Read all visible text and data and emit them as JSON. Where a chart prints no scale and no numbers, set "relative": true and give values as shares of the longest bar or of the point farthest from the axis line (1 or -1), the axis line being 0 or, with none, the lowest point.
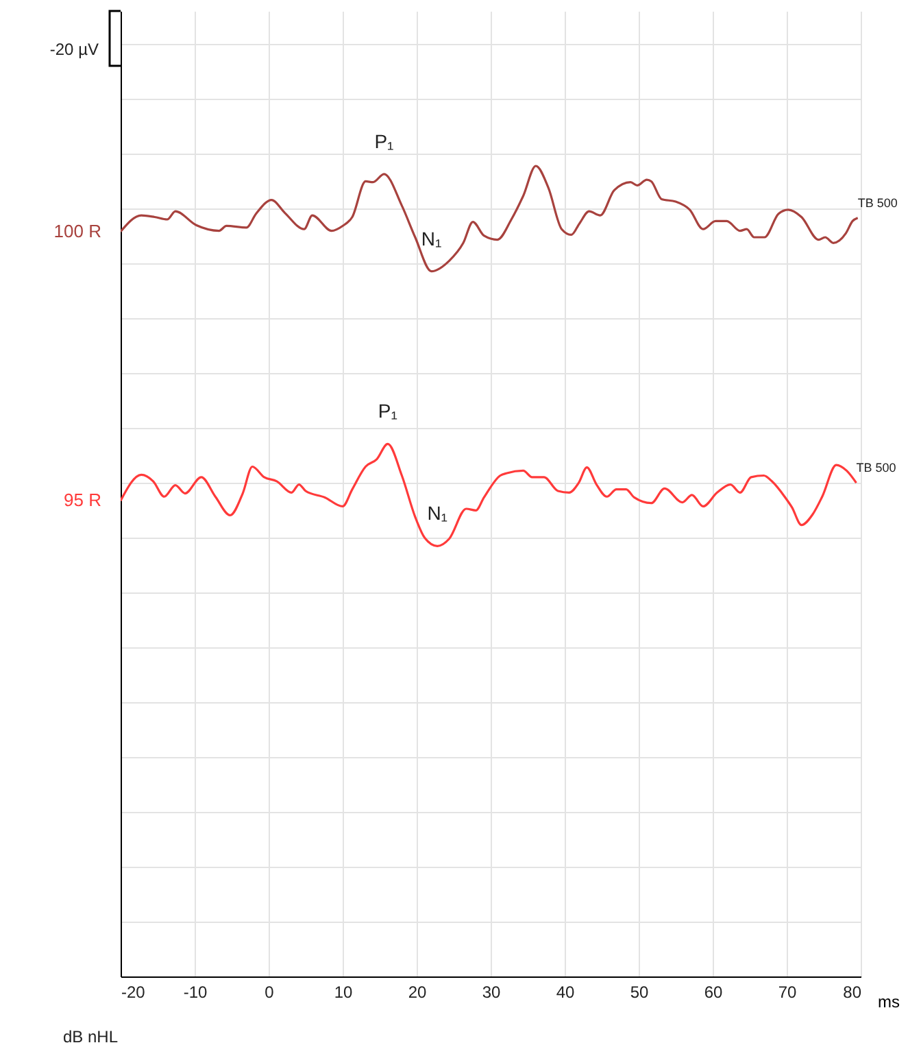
{
  "chart_data": {
    "type": "line",
    "relative": true,
    "xlabel": "ms",
    "xlim": [
      -20,
      80
    ],
    "xticks": [
      -20,
      -10,
      0,
      10,
      20,
      30,
      40,
      50,
      60,
      70,
      80
    ],
    "grid": true,
    "series": [
      {
        "name": "100 R",
        "color": "#a8423e",
        "x": [
          -20.0,
          -17.2,
          -15.4,
          -13.7,
          -12.6,
          -9.8,
          -6.7,
          -5.7,
          -3.0,
          -1.7,
          0.4,
          2.2,
          4.8,
          5.9,
          8.5,
          10.0,
          11.3,
          13.1,
          14.1,
          15.6,
          18.0,
          19.8,
          22.0,
          24.4,
          26.3,
          27.6,
          29.1,
          30.9,
          32.8,
          34.4,
          36.1,
          37.8,
          39.6,
          40.9,
          42.0,
          43.3,
          44.8,
          46.7,
          48.9,
          49.8,
          51.1,
          51.7,
          53.1,
          55.0,
          56.9,
          58.7,
          60.4,
          61.9,
          63.7,
          64.6,
          65.6,
          67.0,
          68.9,
          70.2,
          72.0,
          74.3,
          75.2,
          76.3,
          78.0,
          78.9,
          79.6
        ],
        "values": [
          0.919,
          0.939,
          0.937,
          0.934,
          0.944,
          0.927,
          0.92,
          0.926,
          0.924,
          0.941,
          0.958,
          0.942,
          0.922,
          0.939,
          0.92,
          0.926,
          0.937,
          0.981,
          0.98,
          0.99,
          0.951,
          0.912,
          0.87,
          0.883,
          0.905,
          0.931,
          0.914,
          0.909,
          0.934,
          0.963,
          1.0,
          0.973,
          0.922,
          0.915,
          0.929,
          0.944,
          0.939,
          0.97,
          0.98,
          0.976,
          0.983,
          0.981,
          0.959,
          0.956,
          0.946,
          0.922,
          0.932,
          0.932,
          0.92,
          0.922,
          0.912,
          0.912,
          0.941,
          0.946,
          0.937,
          0.909,
          0.912,
          0.905,
          0.917,
          0.932,
          0.936
        ]
      },
      {
        "name": "95 R",
        "color": "#ff3a3a",
        "x": [
          -20.0,
          -17.2,
          -15.6,
          -14.1,
          -12.6,
          -11.3,
          -9.1,
          -7.2,
          -5.2,
          -3.5,
          -2.2,
          -0.6,
          1.1,
          3.1,
          4.1,
          5.0,
          7.6,
          10.0,
          11.3,
          13.1,
          14.6,
          16.1,
          18.0,
          19.8,
          21.1,
          22.8,
          24.4,
          26.7,
          28.0,
          29.1,
          31.3,
          32.2,
          34.4,
          35.6,
          37.2,
          39.1,
          40.6,
          41.9,
          43.0,
          44.3,
          45.7,
          47.0,
          48.3,
          49.4,
          51.7,
          53.5,
          55.9,
          57.2,
          58.7,
          60.6,
          62.4,
          63.7,
          65.2,
          66.9,
          68.0,
          69.8,
          70.7,
          72.0,
          73.5,
          74.8,
          76.7,
          78.1,
          79.4
        ],
        "values": [
          0.587,
          0.619,
          0.611,
          0.592,
          0.606,
          0.596,
          0.616,
          0.592,
          0.569,
          0.596,
          0.629,
          0.616,
          0.611,
          0.597,
          0.607,
          0.599,
          0.591,
          0.58,
          0.601,
          0.629,
          0.638,
          0.657,
          0.618,
          0.567,
          0.541,
          0.531,
          0.54,
          0.577,
          0.575,
          0.591,
          0.618,
          0.621,
          0.624,
          0.616,
          0.616,
          0.599,
          0.597,
          0.609,
          0.628,
          0.607,
          0.592,
          0.601,
          0.601,
          0.591,
          0.584,
          0.602,
          0.585,
          0.594,
          0.58,
          0.597,
          0.607,
          0.597,
          0.616,
          0.618,
          0.611,
          0.591,
          0.579,
          0.557,
          0.57,
          0.592,
          0.631,
          0.624,
          0.609
        ]
      }
    ],
    "annotations": [
      {
        "text": "P₁",
        "x": 15.6,
        "y": 0.99
      },
      {
        "text": "N₁",
        "x": 22.0,
        "y": 0.87
      },
      {
        "text": "TB 500",
        "x": 79.6,
        "y": 0.936
      },
      {
        "text": "P₁",
        "x": 16.1,
        "y": 0.657
      },
      {
        "text": "N₁",
        "x": 22.8,
        "y": 0.531
      },
      {
        "text": "TB 500",
        "x": 79.4,
        "y": 0.609
      },
      "-20 µV",
      "dB nHL"
    ]
  }
}
